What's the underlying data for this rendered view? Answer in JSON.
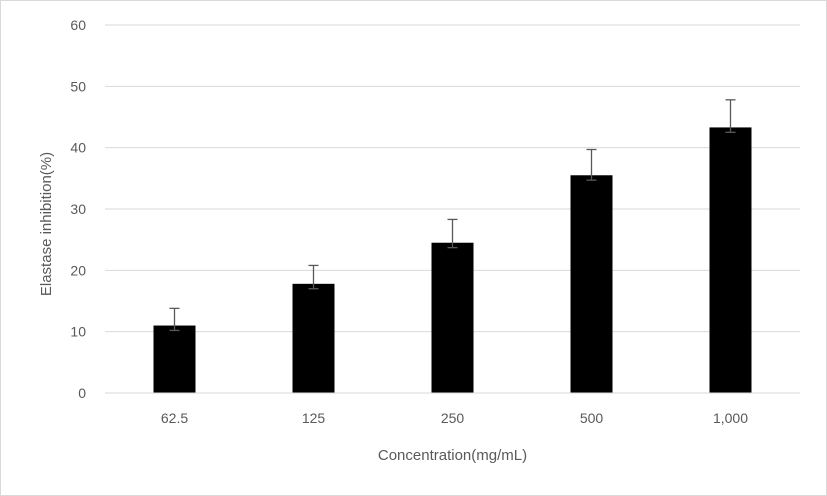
{
  "chart_data": {
    "type": "bar",
    "title": "",
    "xlabel": "Concentration(mg/mL)",
    "ylabel": "Elastase inhibition(%)",
    "categories": [
      "62.5",
      "125",
      "250",
      "500",
      "1,000"
    ],
    "values": [
      11.0,
      17.8,
      24.5,
      35.5,
      43.3
    ],
    "error_upper": [
      2.8,
      3.0,
      3.8,
      4.2,
      4.5
    ],
    "error_lower": [
      0.8,
      0.8,
      0.8,
      0.8,
      0.8
    ],
    "ylim": [
      0,
      60
    ],
    "yticks": [
      "0",
      "10",
      "20",
      "30",
      "40",
      "50",
      "60"
    ],
    "grid": true,
    "legend": "none",
    "colors": {
      "bar": "#000000",
      "grid": "#d9d9d9",
      "text": "#595959",
      "errorbar": "#595959"
    }
  }
}
